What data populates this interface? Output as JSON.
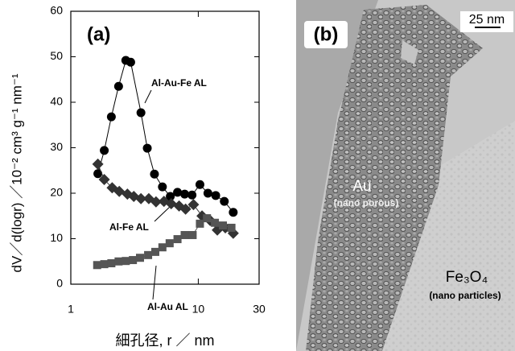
{
  "chart_data": {
    "type": "line",
    "panel_label": "(a)",
    "xlabel": "細孔径,  r  ／  nm",
    "ylabel": "dV／d(logr) ／10⁻²  cm³ g⁻¹ nm⁻¹",
    "xscale": "log",
    "xlim": [
      1,
      30
    ],
    "xticks": [
      1,
      10,
      30
    ],
    "ylim": [
      0,
      60
    ],
    "yticks": [
      0,
      10,
      20,
      30,
      40,
      50,
      60
    ],
    "annotations": [
      "Al-Au-Fe AL",
      "Al-Fe AL",
      "Al-Au AL"
    ],
    "series": [
      {
        "name": "Al-Au-Fe AL",
        "color": "#000000",
        "marker": "circle",
        "x": [
          1.63,
          1.83,
          2.08,
          2.37,
          2.7,
          2.95,
          3.55,
          3.98,
          4.53,
          5.23,
          6.03,
          6.87,
          7.82,
          8.93,
          10.3,
          11.9,
          13.7,
          16.0,
          18.8
        ],
        "values": [
          24.3,
          29.4,
          36.8,
          43.5,
          49.2,
          48.8,
          37.7,
          29.9,
          24.2,
          21.4,
          19.3,
          20.2,
          19.8,
          19.6,
          21.9,
          20.0,
          19.5,
          18.2,
          15.8
        ]
      },
      {
        "name": "Al-Fe AL",
        "color": "#333333",
        "marker": "diamond",
        "x": [
          1.63,
          1.83,
          2.11,
          2.4,
          2.78,
          3.12,
          3.55,
          4.09,
          4.66,
          5.38,
          6.13,
          7.07,
          7.95,
          9.17,
          10.7,
          12.4,
          14.1,
          16.3,
          18.8
        ],
        "values": [
          26.4,
          23.0,
          21.2,
          20.4,
          19.8,
          19.3,
          18.8,
          18.8,
          18.1,
          18.2,
          17.7,
          17.2,
          16.5,
          17.5,
          15.0,
          14.0,
          11.9,
          12.4,
          11.2
        ]
      },
      {
        "name": "Al-Au AL",
        "color": "#555555",
        "marker": "square",
        "x": [
          1.61,
          1.83,
          2.08,
          2.37,
          2.7,
          3.07,
          3.49,
          4.04,
          4.6,
          5.23,
          5.96,
          6.87,
          7.82,
          9.03,
          10.3,
          11.7,
          13.5,
          15.6,
          18.2
        ],
        "values": [
          4.2,
          4.4,
          4.6,
          5.0,
          5.1,
          5.3,
          5.8,
          6.4,
          7.1,
          8.1,
          9.0,
          9.9,
          10.8,
          10.8,
          13.3,
          14.5,
          13.5,
          12.9,
          12.4
        ]
      }
    ]
  },
  "image_panel": {
    "panel_label": "(b)",
    "scale_bar": "25 nm",
    "region_labels": [
      "Au",
      "(nano porous)",
      "Fe₃O₄",
      "(nano particles)"
    ]
  }
}
